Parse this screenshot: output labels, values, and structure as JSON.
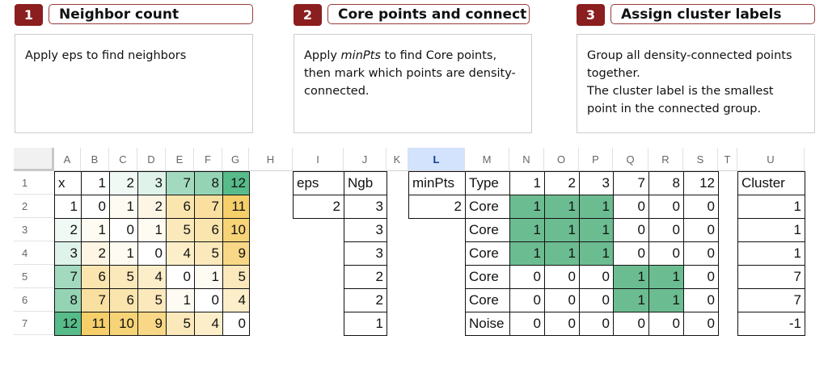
{
  "steps": [
    {
      "number": "1",
      "title": "Neighbor count",
      "description_parts": [
        "Apply eps to find neighbors"
      ]
    },
    {
      "number": "2",
      "title": "Core points and connect",
      "description_parts": [
        "Apply ",
        "minPts",
        " to find Core points, then mark which points are density-connected."
      ]
    },
    {
      "number": "3",
      "title": "Assign cluster labels",
      "description_parts": [
        "Group all density-connected points together.",
        "The cluster label is the smallest point in the connected group."
      ]
    }
  ],
  "sheet": {
    "column_headers": [
      "A",
      "B",
      "C",
      "D",
      "E",
      "F",
      "G",
      "H",
      "I",
      "J",
      "K",
      "L",
      "M",
      "N",
      "O",
      "P",
      "Q",
      "R",
      "S",
      "T",
      "U"
    ],
    "selected_column": "L",
    "row_headers": [
      "1",
      "2",
      "3",
      "4",
      "5",
      "6",
      "7"
    ],
    "distance_matrix": {
      "corner": "x",
      "points": [
        1,
        2,
        3,
        7,
        8,
        12
      ],
      "rows": [
        [
          0,
          1,
          2,
          6,
          7,
          11
        ],
        [
          1,
          0,
          1,
          5,
          6,
          10
        ],
        [
          2,
          1,
          0,
          4,
          5,
          9
        ],
        [
          6,
          5,
          4,
          0,
          1,
          5
        ],
        [
          7,
          6,
          5,
          1,
          0,
          4
        ],
        [
          11,
          10,
          9,
          5,
          4,
          0
        ]
      ]
    },
    "neighbors": {
      "eps_label": "eps",
      "eps_value": "2",
      "ngb_label": "Ngb",
      "ngb_values": [
        "3",
        "3",
        "3",
        "2",
        "2",
        "1"
      ]
    },
    "core": {
      "minpts_label": "minPts",
      "minpts_value": "2",
      "type_label": "Type",
      "points": [
        "1",
        "2",
        "3",
        "7",
        "8",
        "12"
      ],
      "types": [
        "Core",
        "Core",
        "Core",
        "Core",
        "Core",
        "Noise"
      ],
      "connect": [
        [
          1,
          1,
          1,
          0,
          0,
          0
        ],
        [
          1,
          1,
          1,
          0,
          0,
          0
        ],
        [
          1,
          1,
          1,
          0,
          0,
          0
        ],
        [
          0,
          0,
          0,
          1,
          1,
          0
        ],
        [
          0,
          0,
          0,
          1,
          1,
          0
        ],
        [
          0,
          0,
          0,
          0,
          0,
          0
        ]
      ]
    },
    "cluster": {
      "label": "Cluster",
      "values": [
        "1",
        "1",
        "1",
        "7",
        "7",
        "-1"
      ]
    }
  },
  "colors": {
    "brand_red": "#8b1e1e",
    "heat_green": "#57bb8a",
    "heat_yellow": "#f6cf6b",
    "connect_green": "#6cbc91"
  }
}
